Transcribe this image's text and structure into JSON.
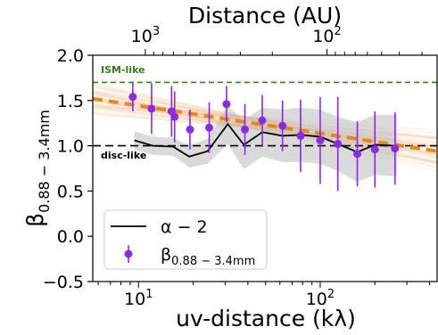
{
  "chart_data": {
    "type": "scatter",
    "top_axis": {
      "label": "Distance (AU)",
      "ticks": [
        {
          "label": "10",
          "exp": "3",
          "value": 1000
        },
        {
          "label": "10",
          "exp": "2",
          "value": 100
        }
      ]
    },
    "x_axis": {
      "label": "uv-distance (kλ)",
      "scale": "log",
      "range": [
        5.6,
        440
      ],
      "ticks": [
        {
          "label": "10",
          "exp": "1",
          "value": 10
        },
        {
          "label": "10",
          "exp": "2",
          "value": 100
        }
      ]
    },
    "y_axis": {
      "label": "β",
      "label_sub": "0.88 − 3.4mm",
      "range": [
        -0.5,
        2.0
      ],
      "ticks": [
        "−0.5",
        "0.0",
        "0.5",
        "1.0",
        "1.5",
        "2.0"
      ],
      "tick_values": [
        -0.5,
        0.0,
        0.5,
        1.0,
        1.5,
        2.0
      ]
    },
    "reference_lines": [
      {
        "label": "ISM-like",
        "y": 1.7,
        "color": "#3a7d1a",
        "style": "dashed"
      },
      {
        "label": "disc-like",
        "y": 1.0,
        "color": "#000000",
        "style": "dashed"
      }
    ],
    "fit": {
      "color": "#e8861c",
      "points": [
        [
          5.6,
          1.52
        ],
        [
          440,
          0.94
        ]
      ]
    },
    "alpha_minus_2": {
      "color": "#000000",
      "points": [
        {
          "x": 9.5,
          "y": 1.06,
          "lo": 0.96,
          "hi": 1.16
        },
        {
          "x": 12,
          "y": 1.0,
          "lo": 0.9,
          "hi": 1.1
        },
        {
          "x": 15.5,
          "y": 0.99,
          "lo": 0.89,
          "hi": 1.09
        },
        {
          "x": 19,
          "y": 0.88,
          "lo": 0.76,
          "hi": 1.0
        },
        {
          "x": 24,
          "y": 0.94,
          "lo": 0.8,
          "hi": 1.08
        },
        {
          "x": 31,
          "y": 1.24,
          "lo": 1.02,
          "hi": 1.44
        },
        {
          "x": 38,
          "y": 1.01,
          "lo": 0.74,
          "hi": 1.28
        },
        {
          "x": 48,
          "y": 1.15,
          "lo": 0.88,
          "hi": 1.42
        },
        {
          "x": 62,
          "y": 1.11,
          "lo": 0.82,
          "hi": 1.4
        },
        {
          "x": 78,
          "y": 1.12,
          "lo": 0.82,
          "hi": 1.42
        },
        {
          "x": 100,
          "y": 1.1,
          "lo": 0.8,
          "hi": 1.4
        },
        {
          "x": 125,
          "y": 1.02,
          "lo": 0.72,
          "hi": 1.32
        },
        {
          "x": 160,
          "y": 0.93,
          "lo": 0.6,
          "hi": 1.26
        },
        {
          "x": 200,
          "y": 1.01,
          "lo": 0.68,
          "hi": 1.34
        },
        {
          "x": 265,
          "y": 1.0,
          "lo": 0.66,
          "hi": 1.34
        }
      ]
    },
    "beta": {
      "color": "#8a2be2",
      "points": [
        {
          "x": 9.3,
          "y": 1.54,
          "err": 0.16
        },
        {
          "x": 11.8,
          "y": 1.41,
          "err": 0.28
        },
        {
          "x": 15.2,
          "y": 1.38,
          "err": 0.28
        },
        {
          "x": 15.8,
          "y": 1.32,
          "err": 0.28
        },
        {
          "x": 19.2,
          "y": 1.18,
          "err": 0.22
        },
        {
          "x": 24.5,
          "y": 1.2,
          "err": 0.28
        },
        {
          "x": 30.5,
          "y": 1.46,
          "err": 0.2
        },
        {
          "x": 38.5,
          "y": 1.18,
          "err": 0.28
        },
        {
          "x": 48,
          "y": 1.28,
          "err": 0.28
        },
        {
          "x": 62,
          "y": 1.22,
          "err": 0.28
        },
        {
          "x": 78,
          "y": 1.11,
          "err": 0.4
        },
        {
          "x": 100,
          "y": 1.06,
          "err": 0.48
        },
        {
          "x": 125,
          "y": 1.02,
          "err": 0.52
        },
        {
          "x": 160,
          "y": 0.91,
          "err": 0.36
        },
        {
          "x": 200,
          "y": 0.96,
          "err": 0.42
        },
        {
          "x": 258,
          "y": 0.97,
          "err": 0.4
        }
      ]
    },
    "legend": {
      "position": "lower-left",
      "entries": [
        {
          "series": "alpha_minus_2",
          "label": "α − 2"
        },
        {
          "series": "beta",
          "label": "β",
          "label_sub": "0.88 − 3.4mm"
        }
      ]
    }
  }
}
